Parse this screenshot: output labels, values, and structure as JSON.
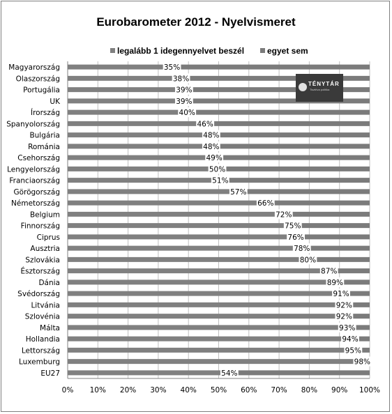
{
  "chart_data": {
    "type": "bar",
    "orientation": "horizontal",
    "stacked": true,
    "title": "Eurobarometer 2012 - Nyelvismeret",
    "categories": [
      "Magyarország",
      "Olaszország",
      "Portugália",
      "UK",
      "Írország",
      "Spanyolország",
      "Bulgária",
      "Románia",
      "Csehország",
      "Lengyelország",
      "Franciaország",
      "Görögország",
      "Németország",
      "Belgium",
      "Finnország",
      "Ciprus",
      "Ausztria",
      "Szlovákia",
      "Észtország",
      "Dánia",
      "Svédország",
      "Litvánia",
      "Szlovénia",
      "Málta",
      "Hollandia",
      "Lettország",
      "Luxemburg",
      "EU27"
    ],
    "series": [
      {
        "name": "legalább 1 idegennyelvet beszél",
        "color": "#808080",
        "values": [
          35,
          38,
          39,
          39,
          40,
          46,
          48,
          48,
          49,
          50,
          51,
          57,
          66,
          72,
          75,
          76,
          78,
          80,
          87,
          89,
          91,
          92,
          92,
          93,
          94,
          95,
          98,
          54
        ]
      },
      {
        "name": "egyet sem",
        "color": "#7b7b7b",
        "values": [
          65,
          62,
          61,
          61,
          60,
          54,
          52,
          52,
          51,
          50,
          49,
          43,
          34,
          28,
          25,
          24,
          22,
          20,
          13,
          11,
          9,
          8,
          8,
          7,
          6,
          5,
          2,
          46
        ]
      }
    ],
    "data_labels": [
      "35%",
      "38%",
      "39%",
      "39%",
      "40%",
      "46%",
      "48%",
      "48%",
      "49%",
      "50%",
      "51%",
      "57%",
      "66%",
      "72%",
      "75%",
      "76%",
      "78%",
      "80%",
      "87%",
      "89%",
      "91%",
      "92%",
      "92%",
      "93%",
      "94%",
      "95%",
      "98%",
      "54%"
    ],
    "x_ticks": [
      "0%",
      "10%",
      "20%",
      "30%",
      "40%",
      "50%",
      "60%",
      "70%",
      "80%",
      "90%",
      "100%"
    ],
    "xlim": [
      0,
      100
    ],
    "grid": true,
    "legend_position": "top"
  },
  "logo": {
    "text": "TÉNYTÁR",
    "subtitle": "Tisztítva politika"
  }
}
